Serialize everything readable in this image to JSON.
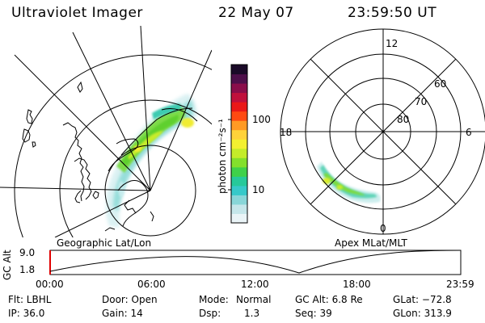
{
  "header": {
    "instrument": "Ultraviolet Imager",
    "date": "22 May 07",
    "time": "23:59:50 UT"
  },
  "colorbar": {
    "unit_label": "photon cm⁻²s⁻¹",
    "ticks": [
      "100",
      "10"
    ],
    "scale": "log",
    "colors": [
      "#eaf4f7",
      "#c5e6ea",
      "#88d6d8",
      "#37c9c9",
      "#27c99a",
      "#3fd14a",
      "#83e02c",
      "#c4ec2a",
      "#f3f030",
      "#ffd23a",
      "#ff9a24",
      "#ff4a12",
      "#ea1818",
      "#c0103c",
      "#8a0d4a",
      "#4d0f4a",
      "#1a0a28"
    ]
  },
  "geo_panel": {
    "label": "Geographic Lat/Lon"
  },
  "polar_panel": {
    "label": "Apex MLat/MLT",
    "mlt_labels": [
      "12",
      "18",
      "6",
      "0"
    ],
    "lat_labels": [
      "60",
      "70",
      "80"
    ]
  },
  "altitude_plot": {
    "ylabel": "GC Alt",
    "ymax_label": "9.0",
    "ymin_label": "1.8",
    "time_ticks": [
      "00:00",
      "06:00",
      "12:00",
      "18:00",
      "23:59"
    ]
  },
  "info": {
    "filter": "Flt: LBHL",
    "ip": "IP: 36.0",
    "door": "Door: Open",
    "gain": "Gain: 14",
    "mode_key": "Mode:",
    "mode_val": "Normal",
    "dsp_key": "Dsp:",
    "dsp_val": "1.3",
    "gc_alt": "GC Alt: 6.8 Re",
    "seq": "Seq: 39",
    "glat": "GLat: −72.8",
    "glon": "GLon: 313.9"
  }
}
